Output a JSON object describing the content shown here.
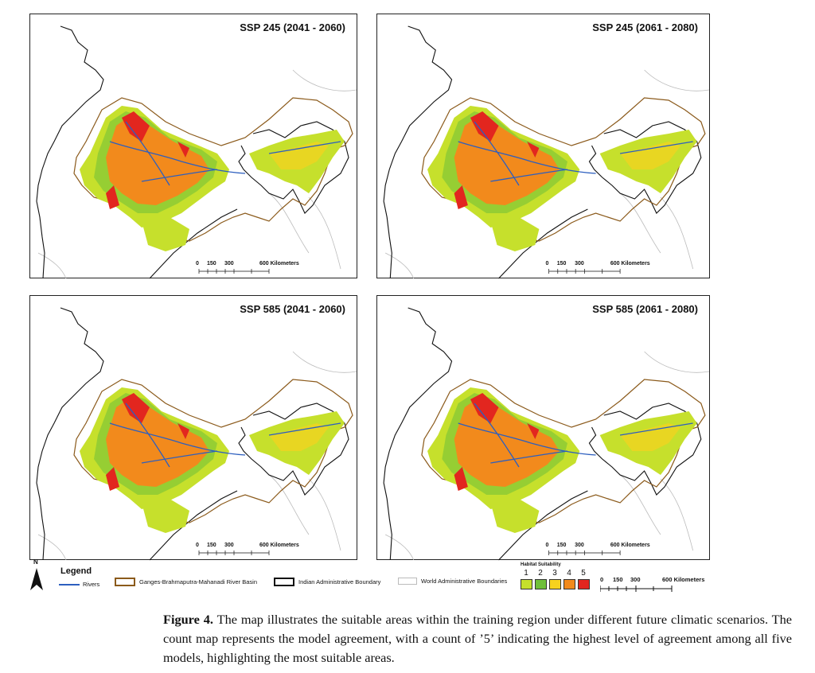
{
  "panels": [
    {
      "title": "SSP 245 (2041 - 2060)",
      "scale_label": "600 Kilometers",
      "scale_ticks": [
        "0",
        "150",
        "300"
      ]
    },
    {
      "title": "SSP 245 (2061 - 2080)",
      "scale_label": "600 Kilometers",
      "scale_ticks": [
        "0",
        "150",
        "300"
      ]
    },
    {
      "title": "SSP 585 (2041 - 2060)",
      "scale_label": "600 Kilometers",
      "scale_ticks": [
        "0",
        "150",
        "300"
      ]
    },
    {
      "title": "SSP 585 (2061 - 2080)",
      "scale_label": "600 Kilometers",
      "scale_ticks": [
        "0",
        "150",
        "300"
      ]
    }
  ],
  "legend": {
    "north": "N",
    "title": "Legend",
    "rivers": "Rivers",
    "basin": "Ganges-Brahmaputra-Mahanadi River Basin",
    "indian_boundary": "Indian Administrative Boundary",
    "world_boundary": "World Administrative Boundaries",
    "suitability_title": "Habitat Suitability",
    "classes": [
      "1",
      "2",
      "3",
      "4",
      "5"
    ],
    "class_colors": [
      "#c6e02c",
      "#6fbf3a",
      "#f6d21e",
      "#f28a1c",
      "#e2261f"
    ],
    "scale_ticks": [
      "0",
      "150",
      "300"
    ],
    "scale_label": "600 Kilometers"
  },
  "caption": {
    "label": "Figure 4.",
    "text": "The map illustrates the suitable areas within the training region under different future climatic scenarios. The count map represents the model agreement, with a count of ’5’ indicating the highest level of agreement among all five models, highlighting the most suitable areas."
  },
  "colors": {
    "river": "#2d5fbf",
    "basin": "#8b5a1b",
    "india": "#111111",
    "world": "#bbbbbb"
  }
}
